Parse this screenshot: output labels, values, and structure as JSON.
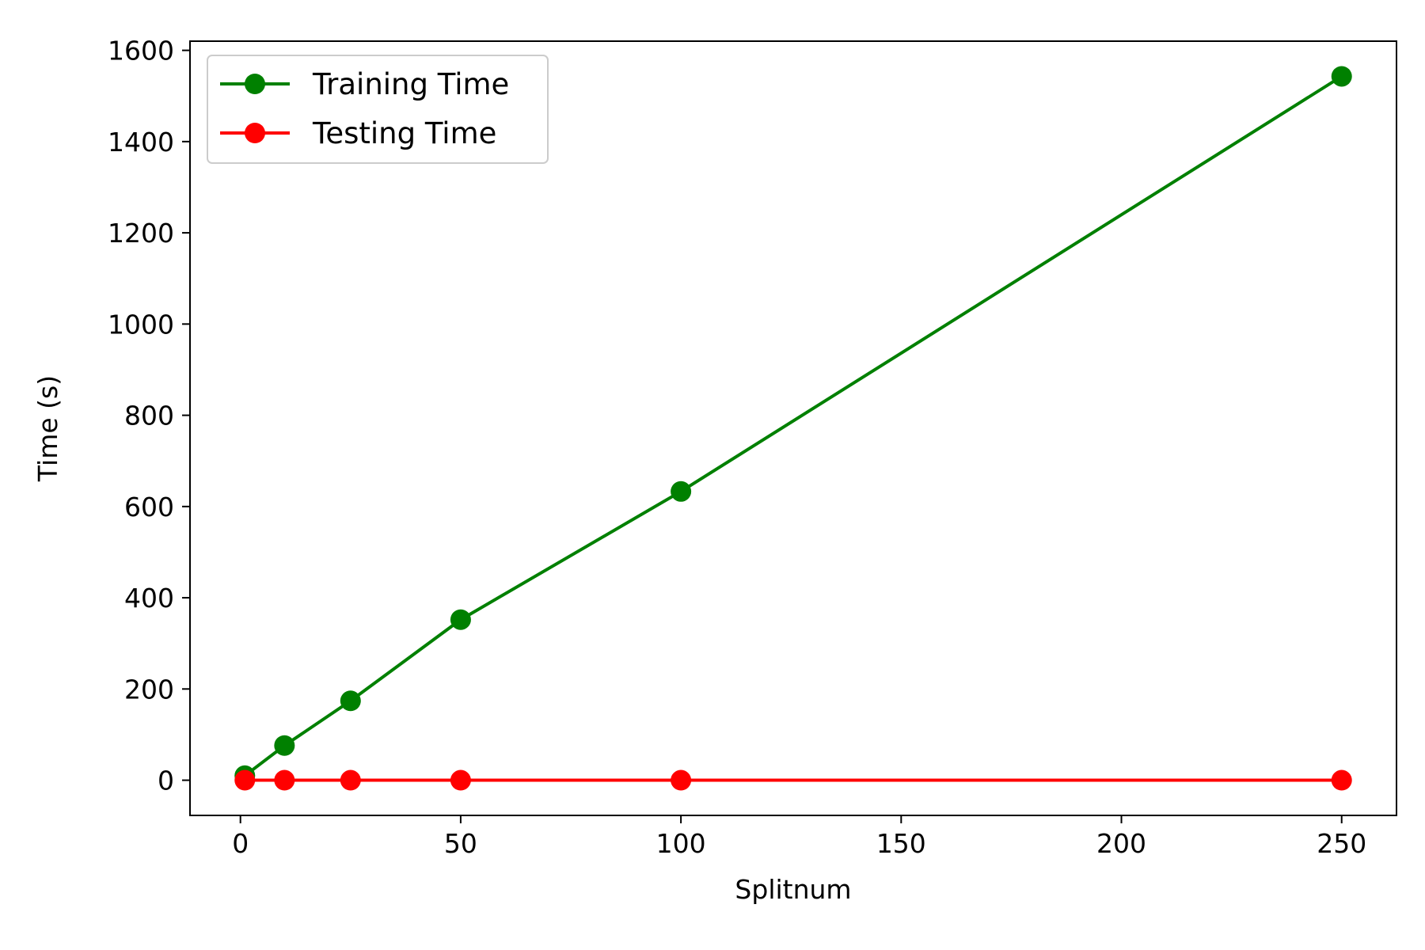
{
  "chart_data": {
    "type": "line",
    "title": "",
    "xlabel": "Splitnum",
    "ylabel": "Time (s)",
    "x": [
      1,
      10,
      25,
      50,
      100,
      250
    ],
    "series": [
      {
        "name": "Training Time",
        "color": "#008000",
        "marker": "circle",
        "values": [
          10,
          76,
          174,
          352,
          633,
          1543
        ]
      },
      {
        "name": "Testing Time",
        "color": "#ff0000",
        "marker": "circle",
        "values": [
          0,
          0,
          0,
          0,
          0,
          0
        ]
      }
    ],
    "xlim": [
      -11.45,
      262.45
    ],
    "ylim": [
      -77.15,
      1620.15
    ],
    "xticks": [
      0,
      50,
      100,
      150,
      200,
      250
    ],
    "yticks": [
      0,
      200,
      400,
      600,
      800,
      1000,
      1200,
      1400,
      1600
    ],
    "xtick_labels": [
      "0",
      "50",
      "100",
      "150",
      "200",
      "250"
    ],
    "ytick_labels": [
      "0",
      "200",
      "400",
      "600",
      "800",
      "1000",
      "1200",
      "1400",
      "1600"
    ],
    "grid": false,
    "legend_position": "top-left"
  }
}
